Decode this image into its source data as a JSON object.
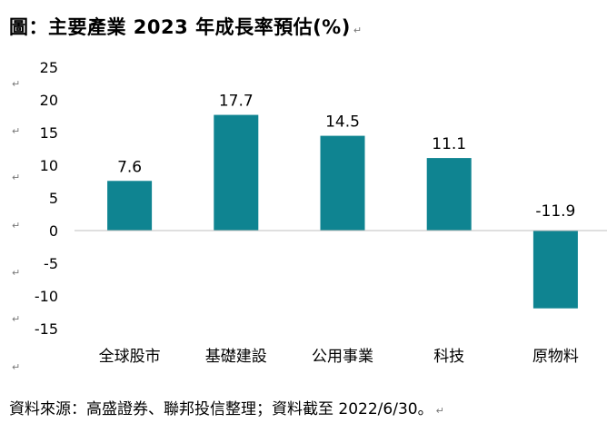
{
  "title": "圖：主要產業 2023 年成長率預估(%)",
  "source": "資料來源：高盛證券、聯邦投信整理；資料截至 2022/6/30。",
  "return_mark": "↵",
  "colors": {
    "bar": "#0f8491",
    "axis": "#bfbfbf",
    "text": "#000000"
  },
  "chart_data": {
    "type": "bar",
    "title": "",
    "xlabel": "",
    "ylabel": "",
    "categories": [
      "全球股市",
      "基礎建設",
      "公用事業",
      "科技",
      "原物料"
    ],
    "values": [
      7.6,
      17.7,
      14.5,
      11.1,
      -11.9
    ],
    "value_labels": [
      "7.6",
      "17.7",
      "14.5",
      "11.1",
      "-11.9"
    ],
    "yticks": [
      25,
      20,
      15,
      10,
      5,
      0,
      -5,
      -10,
      -15
    ],
    "ylim": [
      -15,
      25
    ],
    "grid": false,
    "legend": "none"
  }
}
